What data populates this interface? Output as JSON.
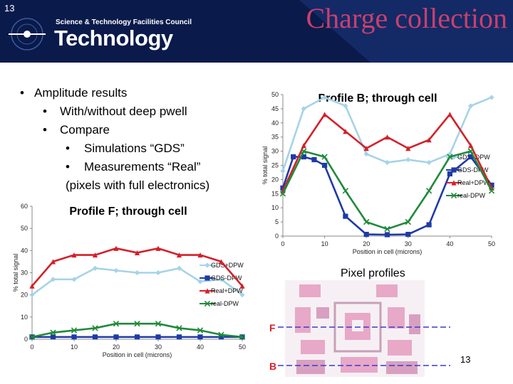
{
  "slide": {
    "number_top": "13",
    "number_bottom": "13",
    "title": "Charge collection"
  },
  "logo": {
    "line1": "Science & Technology Facilities Council",
    "line2": "Technology"
  },
  "bullets": {
    "main": "Amplitude results",
    "sub1": "With/without deep pwell",
    "sub2": "Compare",
    "sub3": "Simulations “GDS”",
    "sub4": "Measurements “Real”",
    "note": "(pixels with full electronics)"
  },
  "pixel_profiles": {
    "title": "Pixel profiles",
    "marker_f": "F",
    "marker_b": "B"
  },
  "colors": {
    "title": "#c8406e",
    "topbar": "#0a1a4a",
    "gds_dpw": "#a6d3e8",
    "gds_minus_dpw": "#1f3aa6",
    "real_dpw": "#d4202a",
    "real_minus_dpw": "#1f8a3a",
    "layout_pink": "#e8a8c8"
  },
  "chart_data": [
    {
      "type": "line",
      "title": "Profile B; through cell",
      "xlabel": "Position in cell (microns)",
      "ylabel": "% total signal",
      "xlim": [
        0,
        50
      ],
      "ylim": [
        0,
        50
      ],
      "xticks": [
        "0",
        "10",
        "20",
        "30",
        "40",
        "50"
      ],
      "yticks": [
        "0",
        "5",
        "10",
        "15",
        "20",
        "25",
        "30",
        "35",
        "40",
        "45",
        "50"
      ],
      "grid": false,
      "legend": "right",
      "series": [
        {
          "name": "GDS+DPW",
          "color": "#a6d3e8",
          "marker": "diamond",
          "x": [
            0,
            5,
            10,
            15,
            20,
            25,
            30,
            35,
            40,
            45,
            50
          ],
          "y": [
            23,
            45,
            49,
            46,
            29,
            26,
            27,
            26,
            29,
            46,
            49
          ]
        },
        {
          "name": "GDS-DPW",
          "color": "#1f3aa6",
          "marker": "square",
          "x": [
            0,
            2.5,
            5,
            7.5,
            10,
            15,
            20,
            25,
            30,
            35,
            40,
            45,
            50
          ],
          "y": [
            17,
            28,
            28,
            27,
            25,
            7,
            0.6,
            0.5,
            0.6,
            4,
            22,
            28,
            18
          ]
        },
        {
          "name": "Real+DPW",
          "color": "#d4202a",
          "marker": "triangle",
          "x": [
            0,
            5,
            10,
            15,
            20,
            25,
            30,
            35,
            40,
            45,
            50
          ],
          "y": [
            16,
            32,
            43,
            37,
            31,
            35,
            31,
            34,
            43,
            32,
            17
          ]
        },
        {
          "name": "real-DPW",
          "color": "#1f8a3a",
          "marker": "x",
          "x": [
            0,
            5,
            10,
            15,
            20,
            25,
            30,
            35,
            40,
            45,
            50
          ],
          "y": [
            15,
            30,
            28,
            16,
            5,
            2.5,
            5,
            16,
            28,
            30,
            16
          ]
        }
      ]
    },
    {
      "type": "line",
      "title": "Profile F; through cell",
      "xlabel": "Position in cell (microns)",
      "ylabel": "% total signal",
      "xlim": [
        0,
        50
      ],
      "ylim": [
        0,
        60
      ],
      "xticks": [
        "0",
        "10",
        "20",
        "30",
        "40",
        "50"
      ],
      "yticks": [
        "0",
        "10",
        "20",
        "30",
        "40",
        "50",
        "60"
      ],
      "grid": false,
      "legend": "right",
      "series": [
        {
          "name": "GDS+DPW",
          "color": "#a6d3e8",
          "marker": "diamond",
          "x": [
            0,
            5,
            10,
            15,
            20,
            25,
            30,
            35,
            40,
            45,
            50
          ],
          "y": [
            20,
            27,
            27,
            32,
            31,
            30,
            30,
            32,
            26,
            27,
            20
          ]
        },
        {
          "name": "GDS-DPW",
          "color": "#1f3aa6",
          "marker": "square",
          "x": [
            0,
            5,
            10,
            15,
            20,
            25,
            30,
            35,
            40,
            45,
            50
          ],
          "y": [
            1,
            1,
            1,
            1,
            1,
            1,
            1,
            1,
            1,
            1,
            1
          ]
        },
        {
          "name": "Real+DPW",
          "color": "#d4202a",
          "marker": "triangle",
          "x": [
            0,
            5,
            10,
            15,
            20,
            25,
            30,
            35,
            40,
            45,
            50
          ],
          "y": [
            24,
            35,
            38,
            38,
            41,
            39,
            41,
            38,
            38,
            35,
            24
          ]
        },
        {
          "name": "real-DPW",
          "color": "#1f8a3a",
          "marker": "x",
          "x": [
            0,
            5,
            10,
            15,
            20,
            25,
            30,
            35,
            40,
            45,
            50
          ],
          "y": [
            1,
            3,
            4,
            5,
            7,
            7,
            7,
            5,
            4,
            2,
            1
          ]
        }
      ]
    }
  ]
}
